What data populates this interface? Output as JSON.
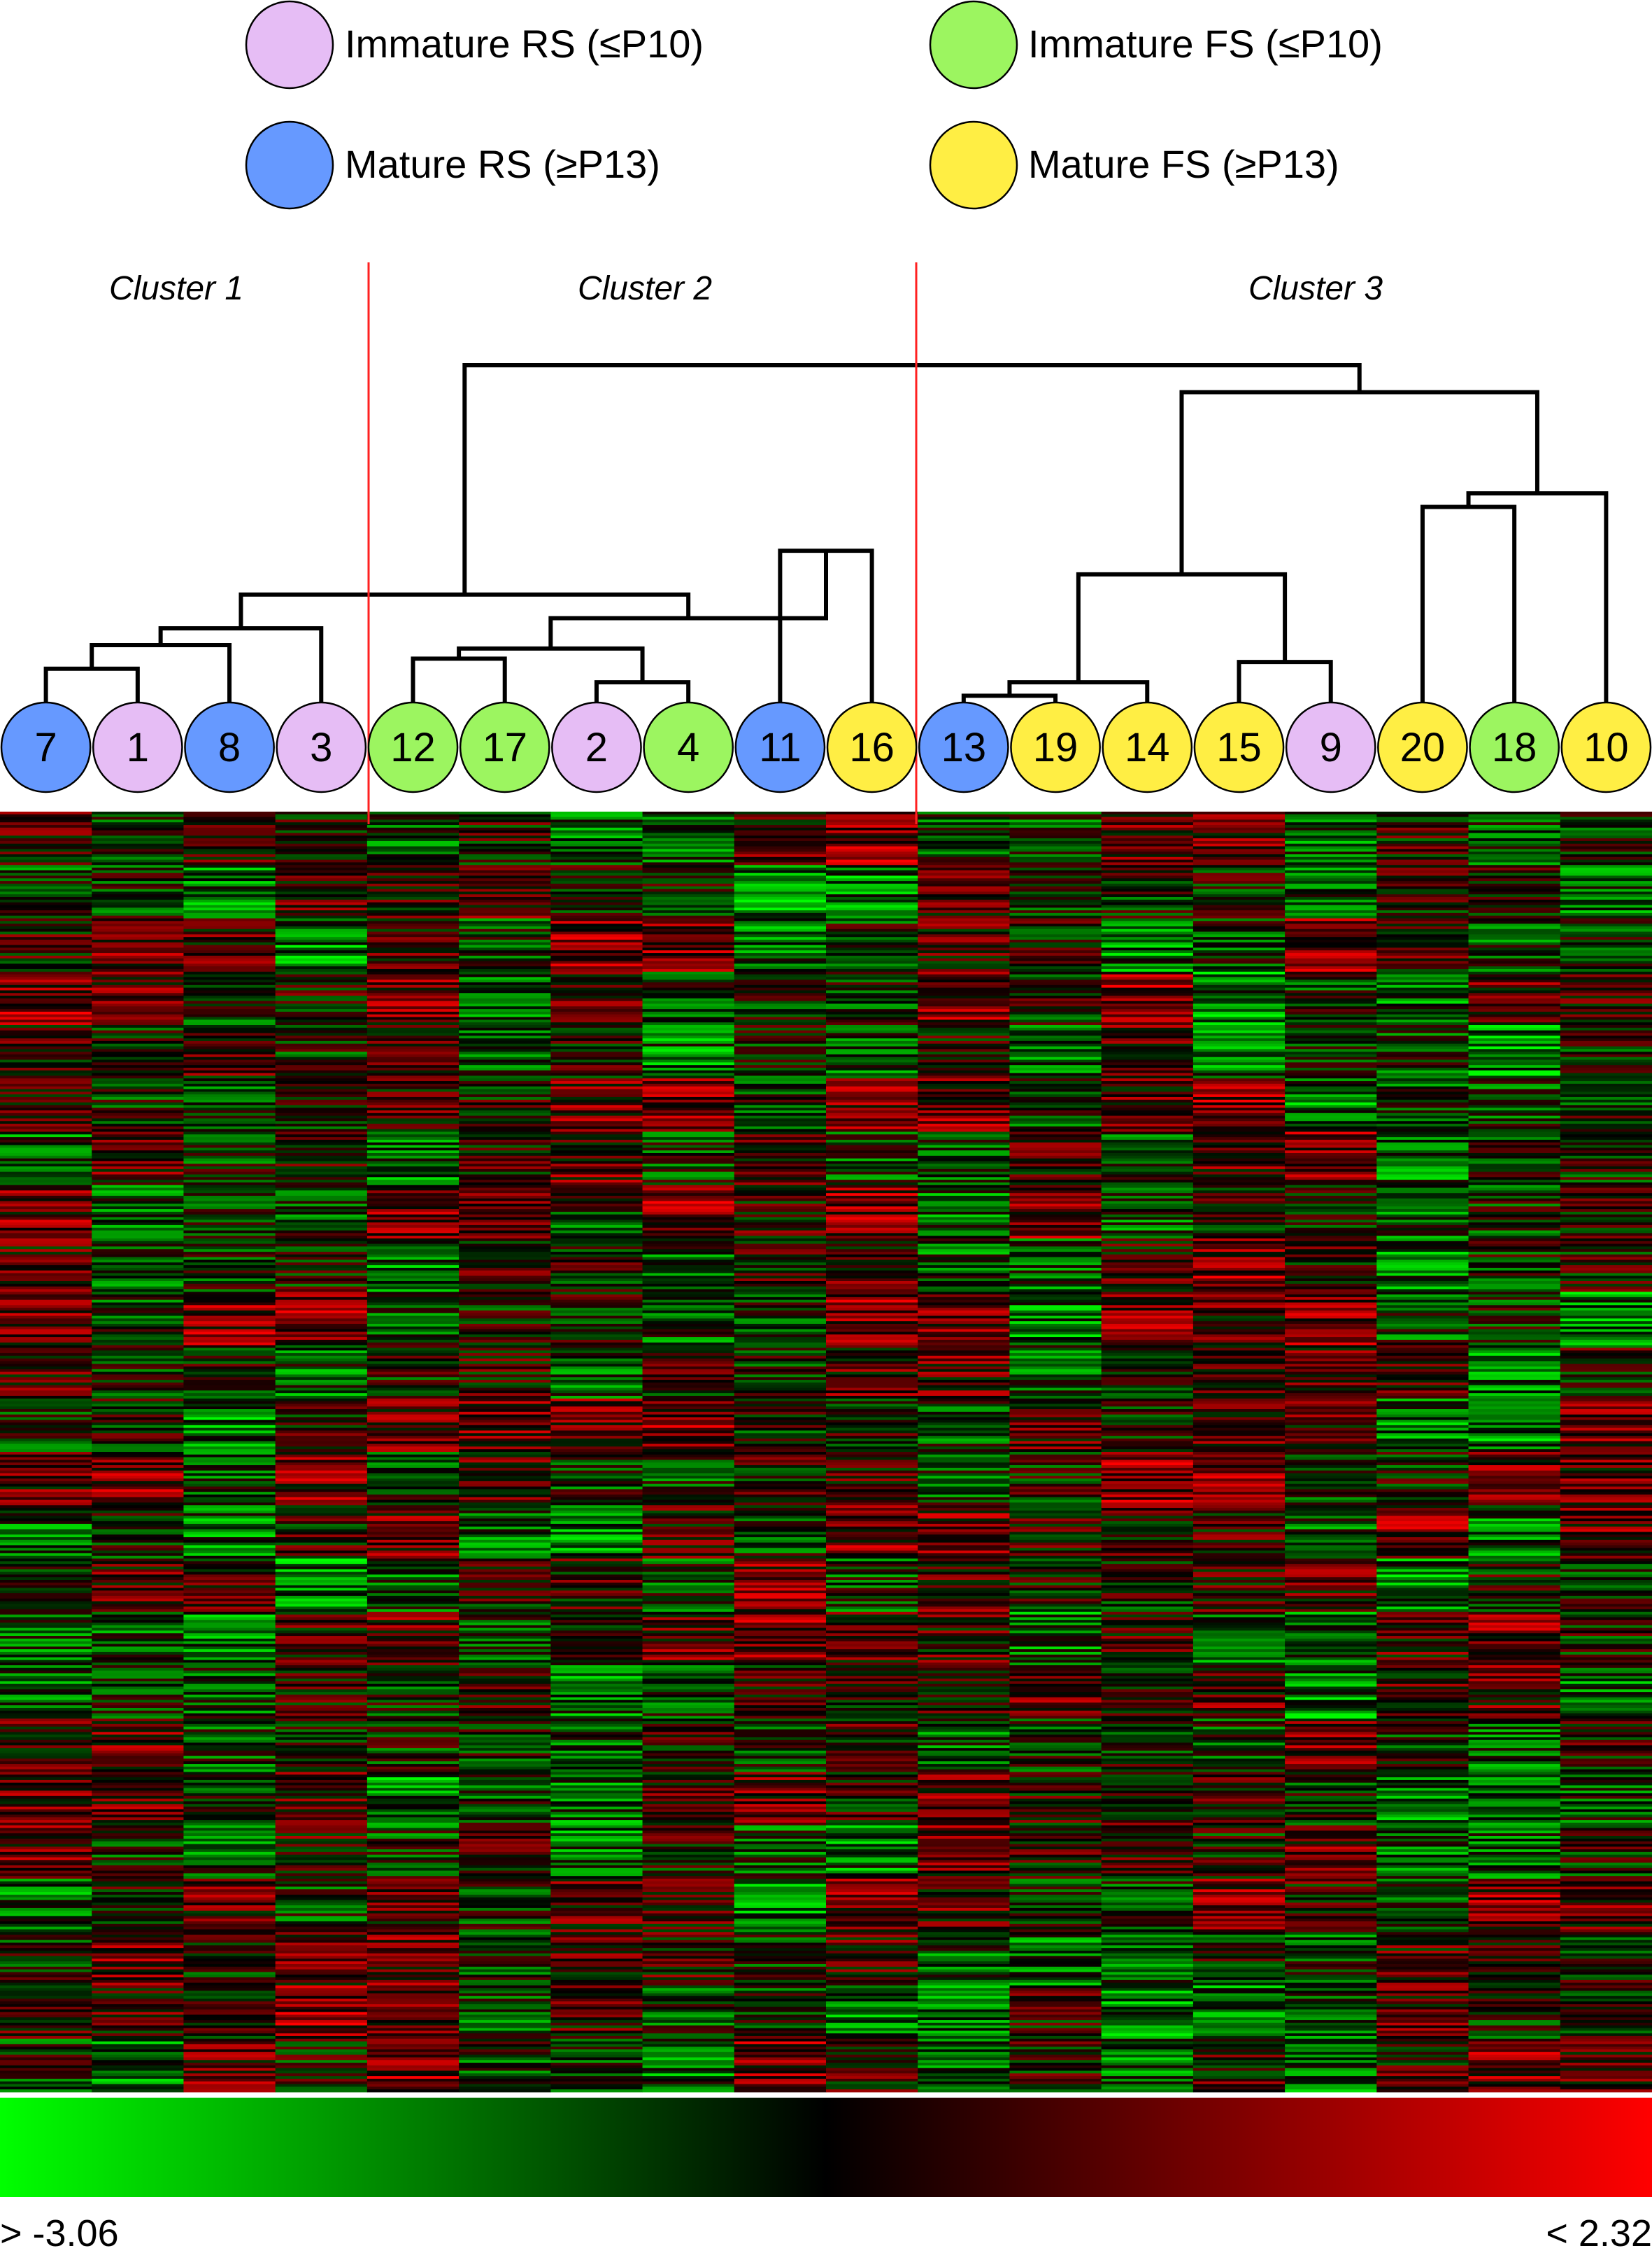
{
  "legend": {
    "items": [
      {
        "label": "Immature RS (≤P10)",
        "color": "#e6bdf5"
      },
      {
        "label": "Immature FS (≤P10)",
        "color": "#9cf560"
      },
      {
        "label": "Mature RS (≥P13)",
        "color": "#6699ff"
      },
      {
        "label": "Mature FS (≥P13)",
        "color": "#ffee44"
      }
    ]
  },
  "clusters": [
    {
      "label": "Cluster 1"
    },
    {
      "label": "Cluster 2"
    },
    {
      "label": "Cluster 3"
    }
  ],
  "chart_data": {
    "type": "heatmap",
    "columns": [
      {
        "label": "7",
        "group": "Mature RS (≥P13)"
      },
      {
        "label": "1",
        "group": "Immature RS (≤P10)"
      },
      {
        "label": "8",
        "group": "Mature RS (≥P13)"
      },
      {
        "label": "3",
        "group": "Immature RS (≤P10)"
      },
      {
        "label": "12",
        "group": "Immature FS (≤P10)"
      },
      {
        "label": "17",
        "group": "Immature FS (≤P10)"
      },
      {
        "label": "2",
        "group": "Immature RS (≤P10)"
      },
      {
        "label": "4",
        "group": "Immature FS (≤P10)"
      },
      {
        "label": "11",
        "group": "Mature RS (≥P13)"
      },
      {
        "label": "16",
        "group": "Mature FS (≥P13)"
      },
      {
        "label": "13",
        "group": "Mature RS (≥P13)"
      },
      {
        "label": "19",
        "group": "Mature FS (≥P13)"
      },
      {
        "label": "14",
        "group": "Mature FS (≥P13)"
      },
      {
        "label": "15",
        "group": "Mature FS (≥P13)"
      },
      {
        "label": "9",
        "group": "Immature RS (≤P10)"
      },
      {
        "label": "20",
        "group": "Mature FS (≥P13)"
      },
      {
        "label": "18",
        "group": "Immature FS (≤P10)"
      },
      {
        "label": "10",
        "group": "Mature FS (≥P13)"
      }
    ],
    "cluster_members": [
      [
        "7",
        "1",
        "8",
        "3"
      ],
      [
        "12",
        "17",
        "2",
        "4",
        "11",
        "16"
      ],
      [
        "13",
        "19",
        "14",
        "15",
        "9",
        "20",
        "18",
        "10"
      ]
    ],
    "dendrogram": [
      {
        "left": "7",
        "right": "1",
        "height": 0.1
      },
      {
        "left": "7-1",
        "right": "8",
        "height": 0.17
      },
      {
        "left": "7-1-8",
        "right": "3",
        "height": 0.22
      },
      {
        "left": "12",
        "right": "17",
        "height": 0.13
      },
      {
        "left": "2",
        "right": "4",
        "height": 0.06
      },
      {
        "left": "11",
        "right": "16",
        "height": 0.45
      },
      {
        "left": "12-17",
        "right": "2-4",
        "height": 0.16
      },
      {
        "left": "12-17-2-4",
        "right": "11-16",
        "height": 0.25
      },
      {
        "left": "cluster1",
        "right": "cluster2",
        "height": 0.32
      },
      {
        "left": "13",
        "right": "19",
        "height": 0.02
      },
      {
        "left": "13-19",
        "right": "14",
        "height": 0.06
      },
      {
        "left": "15",
        "right": "9",
        "height": 0.12
      },
      {
        "left": "13-19-14",
        "right": "15-9",
        "height": 0.38
      },
      {
        "left": "20",
        "right": "18",
        "height": 0.58
      },
      {
        "left": "20-18",
        "right": "10",
        "height": 0.62
      },
      {
        "left": "13-19-14-15-9",
        "right": "20-18-10",
        "height": 0.92
      },
      {
        "left": "cluster1-2",
        "right": "cluster3",
        "height": 1.0
      }
    ],
    "color_scale": {
      "min_label": "> -3.06",
      "max_label": "< 2.32",
      "low_color": "#00ff00",
      "mid_color": "#000000",
      "high_color": "#ff0000"
    }
  }
}
